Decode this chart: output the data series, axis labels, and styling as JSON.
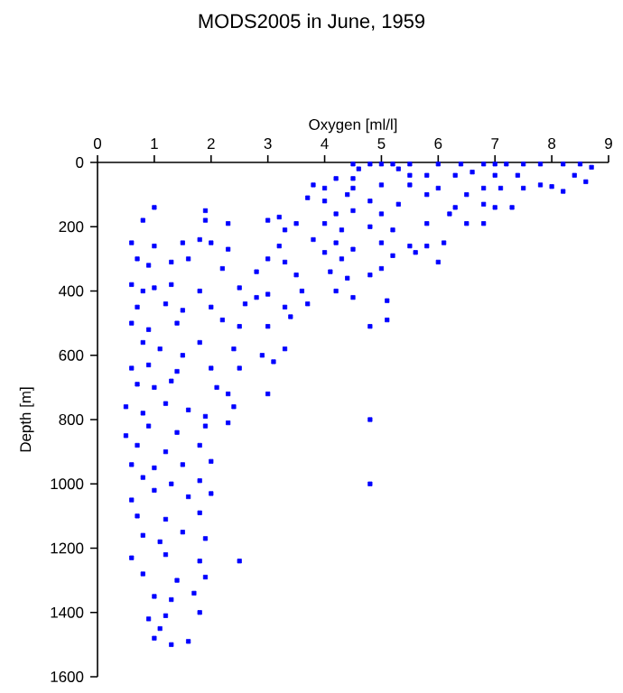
{
  "chart_data": {
    "type": "scatter",
    "title": "MODS2005 in June, 1959",
    "xlabel": "Oxygen [ml/l]",
    "ylabel": "Depth [m]",
    "xlim": [
      0,
      9
    ],
    "xticks": [
      0,
      1,
      2,
      3,
      4,
      5,
      6,
      7,
      8,
      9
    ],
    "ylim": [
      1600,
      0
    ],
    "yticks": [
      0,
      200,
      400,
      600,
      800,
      1000,
      1200,
      1400,
      1600
    ],
    "marker": "square",
    "color": "#0000ff",
    "x": [
      4.5,
      4.8,
      5.0,
      5.2,
      5.5,
      4.6,
      5.3,
      6.0,
      6.4,
      6.8,
      7.0,
      7.2,
      7.5,
      7.8,
      8.2,
      8.5,
      8.7,
      8.4,
      8.6,
      7.0,
      7.4,
      6.6,
      6.3,
      5.8,
      5.5,
      4.5,
      4.2,
      3.8,
      4.0,
      4.5,
      5.0,
      5.5,
      6.0,
      6.8,
      7.1,
      7.5,
      7.8,
      8.0,
      8.2,
      6.5,
      5.8,
      4.4,
      3.7,
      4.0,
      4.8,
      5.3,
      6.3,
      7.0,
      7.3,
      6.8,
      6.2,
      4.5,
      4.2,
      5.0,
      1.0,
      1.9,
      0.8,
      1.9,
      2.3,
      3.0,
      3.2,
      3.5,
      3.3,
      4.0,
      4.3,
      4.8,
      5.2,
      5.8,
      6.5,
      6.8,
      3.2,
      3.8,
      4.2,
      4.5,
      5.0,
      5.5,
      6.1,
      5.8,
      0.6,
      1.0,
      1.5,
      1.8,
      2.0,
      2.3,
      3.0,
      3.3,
      4.0,
      4.3,
      5.2,
      5.6,
      6.0,
      0.7,
      0.9,
      1.3,
      1.6,
      2.2,
      2.8,
      3.5,
      4.1,
      4.4,
      4.8,
      5.0,
      0.6,
      0.8,
      1.0,
      1.3,
      1.8,
      2.5,
      2.8,
      3.0,
      3.6,
      4.2,
      4.5,
      5.1,
      4.8,
      5.1,
      0.7,
      1.2,
      1.5,
      2.0,
      2.6,
      3.3,
      3.7,
      0.6,
      0.9,
      1.4,
      2.2,
      2.5,
      3.0,
      3.4,
      0.8,
      1.1,
      1.5,
      1.8,
      2.4,
      2.9,
      3.3,
      0.6,
      0.9,
      1.4,
      2.0,
      2.5,
      3.1,
      0.7,
      1.0,
      1.3,
      2.1,
      2.3,
      3.0,
      0.5,
      0.8,
      1.2,
      1.6,
      1.9,
      2.4,
      4.8,
      0.9,
      1.4,
      1.9,
      2.3,
      0.5,
      0.7,
      1.2,
      1.8,
      0.6,
      1.0,
      1.5,
      2.0,
      0.8,
      1.3,
      1.8,
      4.8,
      0.6,
      1.0,
      1.6,
      2.0,
      0.7,
      1.2,
      1.8,
      0.8,
      1.1,
      1.5,
      1.9,
      0.6,
      1.2,
      1.8,
      2.5,
      0.8,
      1.4,
      1.9,
      1.0,
      1.3,
      1.7,
      0.9,
      1.2,
      1.8,
      1.0,
      1.3,
      1.6,
      1.1
    ],
    "values": [
      5,
      5,
      5,
      5,
      5,
      20,
      20,
      5,
      5,
      5,
      5,
      5,
      5,
      5,
      5,
      5,
      15,
      40,
      60,
      40,
      40,
      30,
      40,
      40,
      40,
      50,
      50,
      70,
      80,
      80,
      70,
      70,
      80,
      80,
      80,
      80,
      70,
      75,
      90,
      100,
      100,
      100,
      110,
      120,
      120,
      130,
      140,
      140,
      140,
      130,
      160,
      150,
      160,
      160,
      140,
      150,
      180,
      180,
      190,
      180,
      170,
      190,
      210,
      190,
      210,
      200,
      210,
      190,
      190,
      190,
      260,
      240,
      250,
      270,
      250,
      260,
      250,
      260,
      250,
      260,
      250,
      240,
      250,
      270,
      300,
      310,
      280,
      300,
      290,
      280,
      310,
      300,
      320,
      310,
      300,
      330,
      340,
      350,
      340,
      360,
      350,
      330,
      380,
      400,
      390,
      380,
      400,
      390,
      420,
      410,
      400,
      400,
      420,
      430,
      510,
      490,
      450,
      440,
      460,
      450,
      440,
      450,
      440,
      500,
      520,
      500,
      490,
      510,
      510,
      480,
      560,
      580,
      600,
      560,
      580,
      600,
      580,
      640,
      630,
      650,
      640,
      640,
      620,
      690,
      700,
      680,
      700,
      720,
      720,
      760,
      780,
      750,
      770,
      790,
      760,
      800,
      820,
      840,
      820,
      810,
      850,
      880,
      900,
      880,
      940,
      950,
      940,
      930,
      980,
      1000,
      990,
      1000,
      1050,
      1020,
      1040,
      1030,
      1100,
      1110,
      1090,
      1160,
      1180,
      1150,
      1170,
      1230,
      1220,
      1240,
      1240,
      1280,
      1300,
      1290,
      1350,
      1360,
      1340,
      1420,
      1410,
      1400,
      1480,
      1500,
      1490,
      1450
    ]
  }
}
